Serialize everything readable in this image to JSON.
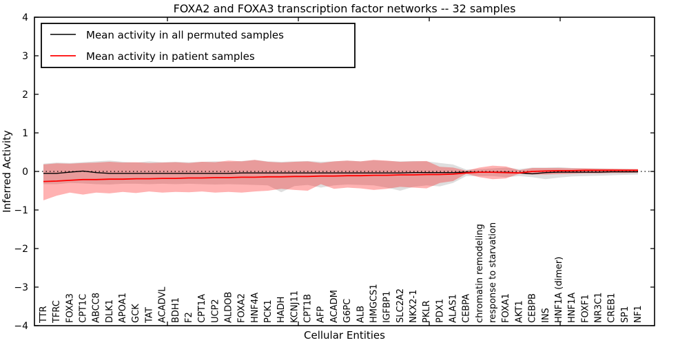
{
  "title": "FOXA2 and FOXA3 transcription factor networks -- 32 samples",
  "legend": {
    "items": [
      {
        "label": "Mean activity in all permuted samples",
        "color": "#000000"
      },
      {
        "label": "Mean activity in patient samples",
        "color": "#ff0000"
      }
    ]
  },
  "chart_data": {
    "type": "line",
    "title": "FOXA2 and FOXA3 transcription factor networks -- 32 samples",
    "xlabel": "Cellular Entities",
    "ylabel": "Inferred Activity",
    "ylim": [
      -4,
      4
    ],
    "yticks": [
      4,
      3,
      2,
      1,
      0,
      -1,
      -2,
      -3,
      -4
    ],
    "grid": false,
    "zero_line_style": "dotted",
    "legend_position": "upper left",
    "band_note": "shaded regions are +/- std around each mean line",
    "categories": [
      "TTR",
      "TFRC",
      "FOXA3",
      "CPT1C",
      "ABCC8",
      "DLK1",
      "APOA1",
      "GCK",
      "TAT",
      "ACADVL",
      "BDH1",
      "F2",
      "CPT1A",
      "UCP2",
      "ALDOB",
      "FOXA2",
      "HNF4A",
      "PCK1",
      "HADH",
      "KCNJ11",
      "CPT1B",
      "AFP",
      "ACADM",
      "G6PC",
      "ALB",
      "HMGCS1",
      "IGFBP1",
      "SLC2A2",
      "NKX2-1",
      "PKLR",
      "PDX1",
      "ALAS1",
      "CEBPA",
      "chromatin remodeling",
      "response to starvation",
      "FOXA1",
      "AKT1",
      "CEBPB",
      "INS",
      "HNF1A (dimer)",
      "HNF1A",
      "FOXF1",
      "NR3C1",
      "CREB1",
      "SP1",
      "NF1"
    ],
    "series": [
      {
        "name": "Mean activity in all permuted samples",
        "color": "#000000",
        "line_width": 1.4,
        "band_color": "#000000",
        "band_opacity": 0.13,
        "values": [
          -0.05,
          -0.05,
          -0.02,
          0.01,
          -0.03,
          -0.05,
          -0.05,
          -0.05,
          -0.05,
          -0.05,
          -0.05,
          -0.05,
          -0.05,
          -0.05,
          -0.05,
          -0.04,
          -0.04,
          -0.04,
          -0.04,
          -0.04,
          -0.04,
          -0.04,
          -0.04,
          -0.04,
          -0.04,
          -0.04,
          -0.04,
          -0.04,
          -0.03,
          -0.03,
          -0.03,
          -0.03,
          -0.02,
          -0.02,
          -0.02,
          -0.02,
          -0.04,
          -0.06,
          -0.03,
          -0.02,
          -0.02,
          -0.02,
          -0.02,
          -0.01,
          -0.01,
          -0.01
        ],
        "band_hi": [
          0.2,
          0.23,
          0.22,
          0.24,
          0.26,
          0.28,
          0.25,
          0.23,
          0.26,
          0.24,
          0.25,
          0.24,
          0.25,
          0.26,
          0.25,
          0.27,
          0.3,
          0.26,
          0.25,
          0.26,
          0.27,
          0.25,
          0.26,
          0.28,
          0.26,
          0.29,
          0.27,
          0.26,
          0.27,
          0.26,
          0.22,
          0.18,
          0.05,
          0.06,
          0.08,
          0.1,
          0.06,
          0.1,
          0.1,
          0.11,
          0.09,
          0.08,
          0.08,
          0.07,
          0.07,
          0.06
        ],
        "band_lo": [
          -0.33,
          -0.33,
          -0.3,
          -0.31,
          -0.33,
          -0.34,
          -0.32,
          -0.32,
          -0.33,
          -0.32,
          -0.33,
          -0.32,
          -0.33,
          -0.34,
          -0.33,
          -0.34,
          -0.35,
          -0.36,
          -0.54,
          -0.38,
          -0.35,
          -0.42,
          -0.36,
          -0.34,
          -0.35,
          -0.36,
          -0.42,
          -0.5,
          -0.4,
          -0.36,
          -0.39,
          -0.3,
          -0.12,
          -0.12,
          -0.12,
          -0.15,
          -0.12,
          -0.15,
          -0.2,
          -0.16,
          -0.13,
          -0.12,
          -0.11,
          -0.1,
          -0.09,
          -0.08
        ]
      },
      {
        "name": "Mean activity in patient samples",
        "color": "#ff0000",
        "line_width": 1.8,
        "band_color": "#ff0000",
        "band_opacity": 0.3,
        "values": [
          -0.26,
          -0.25,
          -0.23,
          -0.21,
          -0.21,
          -0.2,
          -0.2,
          -0.19,
          -0.19,
          -0.18,
          -0.18,
          -0.17,
          -0.17,
          -0.16,
          -0.16,
          -0.15,
          -0.15,
          -0.14,
          -0.14,
          -0.13,
          -0.13,
          -0.12,
          -0.12,
          -0.11,
          -0.11,
          -0.1,
          -0.1,
          -0.09,
          -0.09,
          -0.08,
          -0.08,
          -0.07,
          -0.04,
          -0.02,
          -0.02,
          -0.03,
          -0.04,
          0.0,
          0.01,
          0.02,
          0.02,
          0.03,
          0.03,
          0.03,
          0.03,
          0.03
        ],
        "band_hi": [
          0.18,
          0.21,
          0.2,
          0.22,
          0.23,
          0.25,
          0.23,
          0.24,
          0.22,
          0.23,
          0.24,
          0.22,
          0.25,
          0.24,
          0.28,
          0.26,
          0.3,
          0.25,
          0.23,
          0.25,
          0.26,
          0.22,
          0.26,
          0.28,
          0.26,
          0.3,
          0.28,
          0.25,
          0.26,
          0.27,
          0.12,
          0.1,
          0.02,
          0.1,
          0.15,
          0.13,
          0.03,
          0.09,
          0.09,
          0.09,
          0.08,
          0.08,
          0.07,
          0.07,
          0.06,
          0.06
        ],
        "band_lo": [
          -0.75,
          -0.63,
          -0.55,
          -0.6,
          -0.55,
          -0.57,
          -0.53,
          -0.56,
          -0.52,
          -0.55,
          -0.53,
          -0.54,
          -0.52,
          -0.55,
          -0.53,
          -0.55,
          -0.52,
          -0.5,
          -0.45,
          -0.48,
          -0.5,
          -0.33,
          -0.45,
          -0.42,
          -0.44,
          -0.48,
          -0.45,
          -0.4,
          -0.42,
          -0.44,
          -0.3,
          -0.25,
          -0.06,
          -0.15,
          -0.2,
          -0.18,
          -0.06,
          -0.08,
          -0.08,
          -0.07,
          -0.06,
          -0.05,
          -0.05,
          -0.04,
          -0.04,
          -0.03
        ]
      }
    ]
  }
}
